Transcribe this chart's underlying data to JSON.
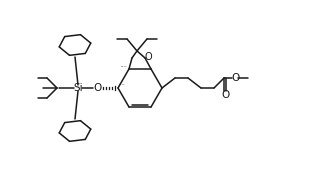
{
  "bg": "#ffffff",
  "lc": "#1a1a1a",
  "lw": 1.1,
  "fs": 7.0,
  "figsize": [
    3.24,
    1.81
  ],
  "dpi": 100,
  "xlim": [
    0,
    324
  ],
  "ylim": [
    0,
    181
  ]
}
